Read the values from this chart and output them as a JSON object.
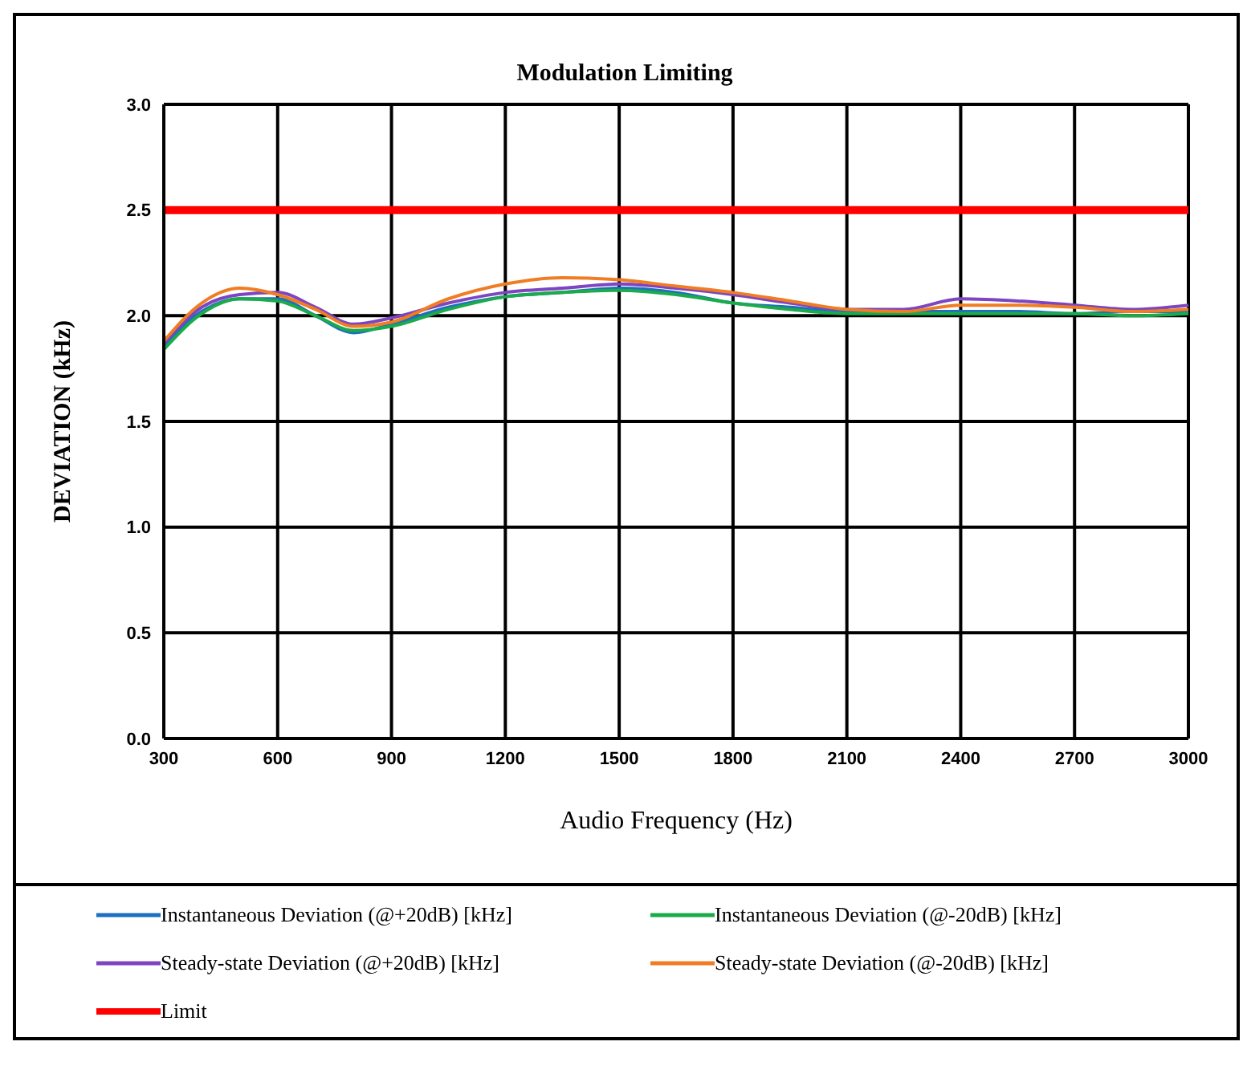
{
  "chart_data": {
    "type": "line",
    "title": "Modulation Limiting",
    "xlabel": "Audio Frequency (Hz)",
    "ylabel": "DEVIATION (kHz)",
    "x": [
      300,
      400,
      500,
      600,
      700,
      800,
      900,
      1050,
      1200,
      1350,
      1500,
      1650,
      1800,
      1950,
      2100,
      2250,
      2400,
      2550,
      2700,
      2850,
      3000
    ],
    "xlim": [
      300,
      3000
    ],
    "xticks": [
      300,
      600,
      900,
      1200,
      1500,
      1800,
      2100,
      2400,
      2700,
      3000
    ],
    "ylim": [
      0,
      3
    ],
    "yticks": [
      {
        "value": 0,
        "label": "0.0"
      },
      {
        "value": 0.5,
        "label": "0.5"
      },
      {
        "value": 1,
        "label": "1.0"
      },
      {
        "value": 1.5,
        "label": "1.5"
      },
      {
        "value": 2,
        "label": "2.0"
      },
      {
        "value": 2.5,
        "label": "2.5"
      },
      {
        "value": 3,
        "label": "3.0"
      }
    ],
    "grid": true,
    "legend": "bottom",
    "marker": "none",
    "line_style": "solid",
    "series": [
      {
        "name": "Instantaneous Deviation (@+20dB) [kHz]",
        "color": "#1f6fc0",
        "values": [
          1.86,
          2.02,
          2.08,
          2.08,
          2.0,
          1.92,
          1.96,
          2.04,
          2.09,
          2.11,
          2.13,
          2.11,
          2.06,
          2.04,
          2.02,
          2.02,
          2.02,
          2.02,
          2.01,
          2.02,
          2.02
        ]
      },
      {
        "name": "Instantaneous Deviation (@-20dB) [kHz]",
        "color": "#1bab4a",
        "values": [
          1.84,
          2.01,
          2.08,
          2.07,
          2.0,
          1.93,
          1.95,
          2.03,
          2.09,
          2.11,
          2.12,
          2.1,
          2.06,
          2.03,
          2.01,
          2.01,
          2.01,
          2.01,
          2.01,
          2.0,
          2.01
        ]
      },
      {
        "name": "Steady-state Deviation (@+20dB) [kHz]",
        "color": "#7d45c0",
        "values": [
          1.87,
          2.04,
          2.1,
          2.11,
          2.04,
          1.96,
          1.99,
          2.06,
          2.11,
          2.13,
          2.15,
          2.13,
          2.1,
          2.06,
          2.03,
          2.03,
          2.08,
          2.07,
          2.05,
          2.03,
          2.05
        ]
      },
      {
        "name": "Steady-state Deviation (@-20dB) [kHz]",
        "color": "#f07d24",
        "values": [
          1.88,
          2.06,
          2.13,
          2.1,
          2.03,
          1.95,
          1.97,
          2.08,
          2.15,
          2.18,
          2.17,
          2.14,
          2.11,
          2.07,
          2.03,
          2.02,
          2.05,
          2.05,
          2.04,
          2.02,
          2.03
        ]
      },
      {
        "name": "Limit",
        "color": "#ff0000",
        "x": [
          300,
          3000
        ],
        "values": [
          2.5,
          2.5
        ]
      }
    ]
  }
}
